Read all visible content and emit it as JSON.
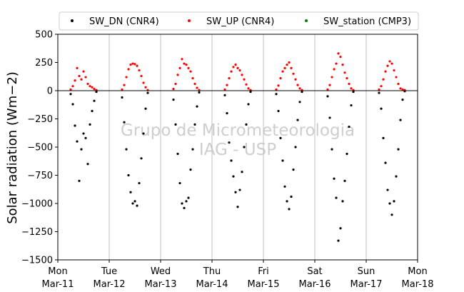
{
  "chart_data": {
    "type": "scatter",
    "ylabel": "Solar radiation (Wm−2)",
    "ylim": [
      -1500,
      500
    ],
    "yticks": [
      -1500,
      -1250,
      -1000,
      -750,
      -500,
      -250,
      0,
      250,
      500
    ],
    "xlim": [
      "2019-03-11",
      "2019-03-18"
    ],
    "xticks": [
      {
        "date": "2019-03-11",
        "day": "Mon",
        "month_day": "Mar-11"
      },
      {
        "date": "2019-03-12",
        "day": "Tue",
        "month_day": "Mar-12"
      },
      {
        "date": "2019-03-13",
        "day": "Wed",
        "month_day": "Mar-13"
      },
      {
        "date": "2019-03-14",
        "day": "Thu",
        "month_day": "Mar-14"
      },
      {
        "date": "2019-03-15",
        "day": "Fri",
        "month_day": "Mar-15"
      },
      {
        "date": "2019-03-16",
        "day": "Sat",
        "month_day": "Mar-16"
      },
      {
        "date": "2019-03-17",
        "day": "Sun",
        "month_day": "Mar-17"
      },
      {
        "date": "2019-03-18",
        "day": "Mon",
        "month_day": "Mar-18"
      }
    ],
    "grid": "x-major",
    "zero_line": 0,
    "legend": "top",
    "series": [
      {
        "name": "SW_DN (CNR4)",
        "color": "#000000",
        "x": [
          "2019-03-11T06:00",
          "2019-03-11T07:00",
          "2019-03-11T08:00",
          "2019-03-11T09:00",
          "2019-03-11T10:00",
          "2019-03-11T11:00",
          "2019-03-11T12:00",
          "2019-03-11T13:00",
          "2019-03-11T14:00",
          "2019-03-11T15:00",
          "2019-03-11T16:00",
          "2019-03-11T17:00",
          "2019-03-11T18:00",
          "2019-03-12T06:00",
          "2019-03-12T07:00",
          "2019-03-12T08:00",
          "2019-03-12T09:00",
          "2019-03-12T10:00",
          "2019-03-12T11:00",
          "2019-03-12T12:00",
          "2019-03-12T13:00",
          "2019-03-12T14:00",
          "2019-03-12T15:00",
          "2019-03-12T16:00",
          "2019-03-12T17:00",
          "2019-03-12T18:00",
          "2019-03-13T06:00",
          "2019-03-13T07:00",
          "2019-03-13T08:00",
          "2019-03-13T09:00",
          "2019-03-13T10:00",
          "2019-03-13T11:00",
          "2019-03-13T12:00",
          "2019-03-13T13:00",
          "2019-03-13T14:00",
          "2019-03-13T15:00",
          "2019-03-13T16:00",
          "2019-03-13T17:00",
          "2019-03-13T18:00",
          "2019-03-14T06:00",
          "2019-03-14T07:00",
          "2019-03-14T08:00",
          "2019-03-14T09:00",
          "2019-03-14T10:00",
          "2019-03-14T11:00",
          "2019-03-14T12:00",
          "2019-03-14T13:00",
          "2019-03-14T14:00",
          "2019-03-14T15:00",
          "2019-03-14T16:00",
          "2019-03-14T17:00",
          "2019-03-14T18:00",
          "2019-03-15T06:00",
          "2019-03-15T07:00",
          "2019-03-15T08:00",
          "2019-03-15T09:00",
          "2019-03-15T10:00",
          "2019-03-15T11:00",
          "2019-03-15T12:00",
          "2019-03-15T13:00",
          "2019-03-15T14:00",
          "2019-03-15T15:00",
          "2019-03-15T16:00",
          "2019-03-15T17:00",
          "2019-03-15T18:00",
          "2019-03-16T06:00",
          "2019-03-16T07:00",
          "2019-03-16T08:00",
          "2019-03-16T09:00",
          "2019-03-16T10:00",
          "2019-03-16T11:00",
          "2019-03-16T12:00",
          "2019-03-16T13:00",
          "2019-03-16T14:00",
          "2019-03-16T15:00",
          "2019-03-16T16:00",
          "2019-03-16T17:00",
          "2019-03-16T18:00",
          "2019-03-17T06:00",
          "2019-03-17T07:00",
          "2019-03-17T08:00",
          "2019-03-17T09:00",
          "2019-03-17T10:00",
          "2019-03-17T11:00",
          "2019-03-17T12:00",
          "2019-03-17T13:00",
          "2019-03-17T14:00",
          "2019-03-17T15:00",
          "2019-03-17T16:00",
          "2019-03-17T17:00",
          "2019-03-17T18:00"
        ],
        "y": [
          -30,
          -120,
          -310,
          -450,
          -800,
          -520,
          -380,
          -420,
          -650,
          -300,
          -180,
          -90,
          -10,
          -60,
          -280,
          -520,
          -750,
          -900,
          -1000,
          -980,
          -1020,
          -820,
          -600,
          -380,
          -160,
          -20,
          -80,
          -300,
          -560,
          -820,
          -1000,
          -1040,
          -980,
          -950,
          -700,
          -520,
          -300,
          -140,
          -15,
          -40,
          -200,
          -460,
          -620,
          -760,
          -900,
          -1030,
          -880,
          -720,
          -500,
          -300,
          -120,
          -10,
          -30,
          -180,
          -420,
          -620,
          -850,
          -980,
          -1050,
          -940,
          -700,
          -500,
          -260,
          -100,
          -10,
          -50,
          -240,
          -520,
          -780,
          -950,
          -1330,
          -1220,
          -980,
          -800,
          -560,
          -320,
          -130,
          -10,
          -20,
          -160,
          -420,
          -640,
          -880,
          -1000,
          -1100,
          -980,
          -760,
          -520,
          -260,
          -80,
          -5
        ]
      },
      {
        "name": "SW_UP (CNR4)",
        "color": "#ff0000",
        "x": [
          "2019-03-11T06:00",
          "2019-03-11T07:00",
          "2019-03-11T08:00",
          "2019-03-11T09:00",
          "2019-03-11T10:00",
          "2019-03-11T11:00",
          "2019-03-11T12:00",
          "2019-03-11T13:00",
          "2019-03-11T14:00",
          "2019-03-11T15:00",
          "2019-03-11T16:00",
          "2019-03-11T17:00",
          "2019-03-11T18:00",
          "2019-03-12T06:00",
          "2019-03-12T07:00",
          "2019-03-12T08:00",
          "2019-03-12T09:00",
          "2019-03-12T10:00",
          "2019-03-12T11:00",
          "2019-03-12T12:00",
          "2019-03-12T13:00",
          "2019-03-12T14:00",
          "2019-03-12T15:00",
          "2019-03-12T16:00",
          "2019-03-12T17:00",
          "2019-03-12T18:00",
          "2019-03-13T06:00",
          "2019-03-13T07:00",
          "2019-03-13T08:00",
          "2019-03-13T09:00",
          "2019-03-13T10:00",
          "2019-03-13T11:00",
          "2019-03-13T12:00",
          "2019-03-13T13:00",
          "2019-03-13T14:00",
          "2019-03-13T15:00",
          "2019-03-13T16:00",
          "2019-03-13T17:00",
          "2019-03-13T18:00",
          "2019-03-14T06:00",
          "2019-03-14T07:00",
          "2019-03-14T08:00",
          "2019-03-14T09:00",
          "2019-03-14T10:00",
          "2019-03-14T11:00",
          "2019-03-14T12:00",
          "2019-03-14T13:00",
          "2019-03-14T14:00",
          "2019-03-14T15:00",
          "2019-03-14T16:00",
          "2019-03-14T17:00",
          "2019-03-14T18:00",
          "2019-03-15T06:00",
          "2019-03-15T07:00",
          "2019-03-15T08:00",
          "2019-03-15T09:00",
          "2019-03-15T10:00",
          "2019-03-15T11:00",
          "2019-03-15T12:00",
          "2019-03-15T13:00",
          "2019-03-15T14:00",
          "2019-03-15T15:00",
          "2019-03-15T16:00",
          "2019-03-15T17:00",
          "2019-03-15T18:00",
          "2019-03-16T06:00",
          "2019-03-16T07:00",
          "2019-03-16T08:00",
          "2019-03-16T09:00",
          "2019-03-16T10:00",
          "2019-03-16T11:00",
          "2019-03-16T12:00",
          "2019-03-16T13:00",
          "2019-03-16T14:00",
          "2019-03-16T15:00",
          "2019-03-16T16:00",
          "2019-03-16T17:00",
          "2019-03-16T18:00",
          "2019-03-17T06:00",
          "2019-03-17T07:00",
          "2019-03-17T08:00",
          "2019-03-17T09:00",
          "2019-03-17T10:00",
          "2019-03-17T11:00",
          "2019-03-17T12:00",
          "2019-03-17T13:00",
          "2019-03-17T14:00",
          "2019-03-17T15:00",
          "2019-03-17T16:00",
          "2019-03-17T17:00",
          "2019-03-17T18:00"
        ],
        "y": [
          10,
          40,
          90,
          200,
          130,
          100,
          170,
          120,
          60,
          40,
          30,
          15,
          5,
          10,
          50,
          120,
          190,
          230,
          240,
          235,
          220,
          180,
          130,
          70,
          30,
          5,
          15,
          60,
          140,
          200,
          280,
          240,
          230,
          200,
          170,
          110,
          60,
          25,
          5,
          10,
          50,
          110,
          170,
          210,
          230,
          200,
          180,
          140,
          100,
          55,
          20,
          5,
          10,
          45,
          110,
          170,
          200,
          230,
          250,
          200,
          150,
          100,
          50,
          20,
          5,
          10,
          50,
          120,
          190,
          240,
          330,
          300,
          230,
          160,
          110,
          60,
          20,
          5,
          10,
          40,
          100,
          170,
          220,
          260,
          240,
          180,
          120,
          60,
          20,
          10,
          5
        ]
      },
      {
        "name": "SW_station (CMP3)",
        "color": "#008000",
        "x": [],
        "y": []
      }
    ]
  },
  "watermark": [
    "Grupo de Micrometeorologia",
    "IAG - USP"
  ]
}
